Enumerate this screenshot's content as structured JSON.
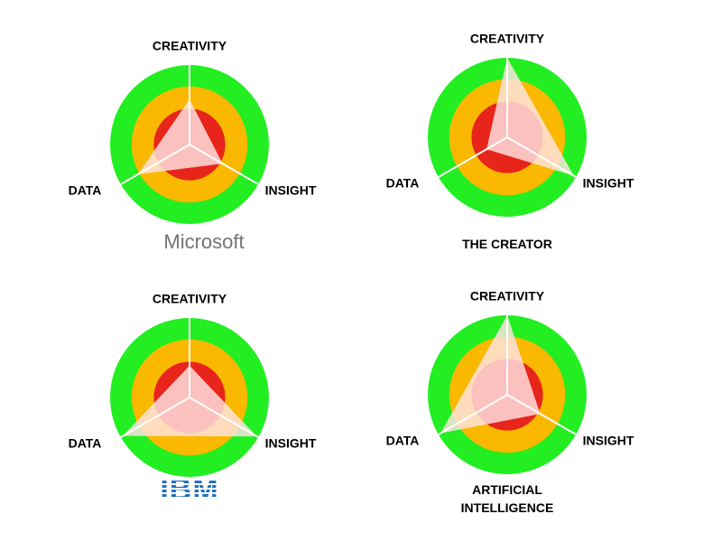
{
  "chart_data": [
    {
      "type": "radar",
      "title": "Microsoft",
      "categories": [
        "CREATIVITY",
        "INSIGHT",
        "DATA"
      ],
      "values": [
        57,
        48,
        75
      ],
      "ylim": [
        0,
        100
      ],
      "color": "#ffe4e4",
      "ring_colors": [
        "#22ee22",
        "#fbb800",
        "#e8251b"
      ]
    },
    {
      "type": "radar",
      "title": "THE CREATOR",
      "categories": [
        "CREATIVITY",
        "INSIGHT",
        "DATA"
      ],
      "values": [
        100,
        97,
        30
      ],
      "ylim": [
        0,
        100
      ],
      "color": "#ffe4e4",
      "ring_colors": [
        "#22ee22",
        "#fbb800",
        "#e8251b"
      ]
    },
    {
      "type": "radar",
      "title": "IBM",
      "categories": [
        "CREATIVITY",
        "INSIGHT",
        "DATA"
      ],
      "values": [
        40,
        98,
        97
      ],
      "ylim": [
        0,
        100
      ],
      "color": "#ffe4e4",
      "ring_colors": [
        "#22ee22",
        "#fbb800",
        "#e8251b"
      ]
    },
    {
      "type": "radar",
      "title": "ARTIFICIAL INTELLIGENCE",
      "categories": [
        "CREATIVITY",
        "INSIGHT",
        "DATA"
      ],
      "values": [
        100,
        48,
        97
      ],
      "ylim": [
        0,
        100
      ],
      "color": "#ffe4e4",
      "ring_colors": [
        "#22ee22",
        "#fbb800",
        "#e8251b"
      ]
    }
  ]
}
